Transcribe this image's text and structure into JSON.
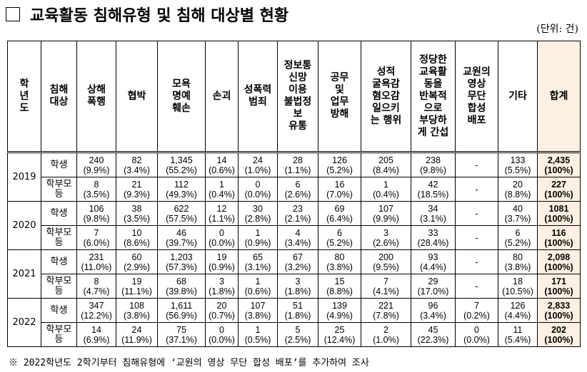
{
  "header": {
    "title": "교육활동 침해유형 및 침해 대상별 현황",
    "unit": "(단위: 건)"
  },
  "table": {
    "columns": [
      "학\n년\n도",
      "침해\n대상",
      "상해\n폭행",
      "협박",
      "모욕\n명예\n훼손",
      "손괴",
      "성폭력\n범죄",
      "정보통\n신망\n이용\n불법정\n보\n유통",
      "공무\n및\n업무\n방해",
      "성적\n굴욕감\n혐오감\n일으키\n는 행위",
      "정당한\n교육활\n동을\n반복적\n으로\n부당하\n게 간섭",
      "교원의\n영상\n무단\n합성\n배포",
      "기타",
      "합계"
    ],
    "years": [
      {
        "year": "2019",
        "rows": [
          {
            "target": "학생",
            "cells": [
              "240\n(9.9%)",
              "82\n(3.4%)",
              "1,345\n(55.2%)",
              "14\n(0.6%)",
              "24\n(1.0%)",
              "28\n(1.1%)",
              "126\n(5.2%)",
              "205\n(8.4%)",
              "238\n(9.8%)",
              "-",
              "133\n(5.5%)",
              "2,435\n(100%)"
            ]
          },
          {
            "target": "학부모\n등",
            "cells": [
              "8\n(3.5%)",
              "21\n(9.3%)",
              "112\n(49.3%)",
              "1\n(0.4%)",
              "0\n(0.0%)",
              "6\n(2.6%)",
              "16\n(7.0%)",
              "1\n(0.4%)",
              "42\n(18.5%)",
              "-",
              "20\n(8.8%)",
              "227\n(100%)"
            ]
          }
        ]
      },
      {
        "year": "2020",
        "rows": [
          {
            "target": "학생",
            "cells": [
              "106\n(9.8%)",
              "38\n(3.5%)",
              "622\n(57.5%)",
              "12\n(1.1%)",
              "30\n(2.8%)",
              "23\n(2.1%)",
              "69\n(6.4%)",
              "107\n(9.9%)",
              "34\n(3.1%)",
              "-",
              "40\n(3.7%)",
              "1081\n(100%)"
            ]
          },
          {
            "target": "학부모\n등",
            "cells": [
              "7\n(6.0%)",
              "10\n(8.6%)",
              "46\n(39.7%)",
              "0\n(0.0%)",
              "1\n(0.9%)",
              "4\n(3.4%)",
              "6\n(5.2%)",
              "3\n(2.6%)",
              "33\n(28.4%)",
              "-",
              "6\n(5.2%)",
              "116\n(100%)"
            ]
          }
        ]
      },
      {
        "year": "2021",
        "rows": [
          {
            "target": "학생",
            "cells": [
              "231\n(11.0%)",
              "60\n(2.9%)",
              "1,203\n(57.3%)",
              "19\n(0.9%)",
              "65\n(3.1%)",
              "67\n(3.2%)",
              "80\n(3.8%)",
              "200\n(9.5%)",
              "93\n(4.4%)",
              "-",
              "80\n(3.8%)",
              "2,098\n(100%)"
            ]
          },
          {
            "target": "학부모\n등",
            "cells": [
              "8\n(4.7%)",
              "19\n(11.1%)",
              "68\n(39.8%)",
              "3\n(1.8%)",
              "1\n(0.6%)",
              "3\n(1.8%)",
              "15\n(8.8%)",
              "7\n(4.1%)",
              "29\n(17.0%)",
              "-",
              "18\n(10.5%)",
              "171\n(100%)"
            ]
          }
        ]
      },
      {
        "year": "2022",
        "rows": [
          {
            "target": "학생",
            "cells": [
              "347\n(12.2%)",
              "108\n(3.8%)",
              "1,611\n(56.9%)",
              "20\n(0.7%)",
              "107\n(3.8%)",
              "51\n(1.8%)",
              "139\n(4.9%)",
              "221\n(7.8%)",
              "96\n(3.4%)",
              "7\n(0.2%)",
              "126\n(4.4%)",
              "2,833\n(100%)"
            ]
          },
          {
            "target": "학부모\n등",
            "cells": [
              "14\n(6.9%)",
              "24\n(11.9%)",
              "75\n(37.1%)",
              "0\n(0.0%)",
              "1\n(0.5%)",
              "5\n(2.5%)",
              "25\n(12.4%)",
              "2\n(1.0%)",
              "45\n(22.3%)",
              "0\n(0.0%)",
              "11\n(5.4%)",
              "202\n(100%)"
            ]
          }
        ]
      }
    ]
  },
  "footnote": "※ 2022학년도 2학기부터 침해유형에 ‘교원의 영상 무단 합성 배포’를 추가하여 조사"
}
